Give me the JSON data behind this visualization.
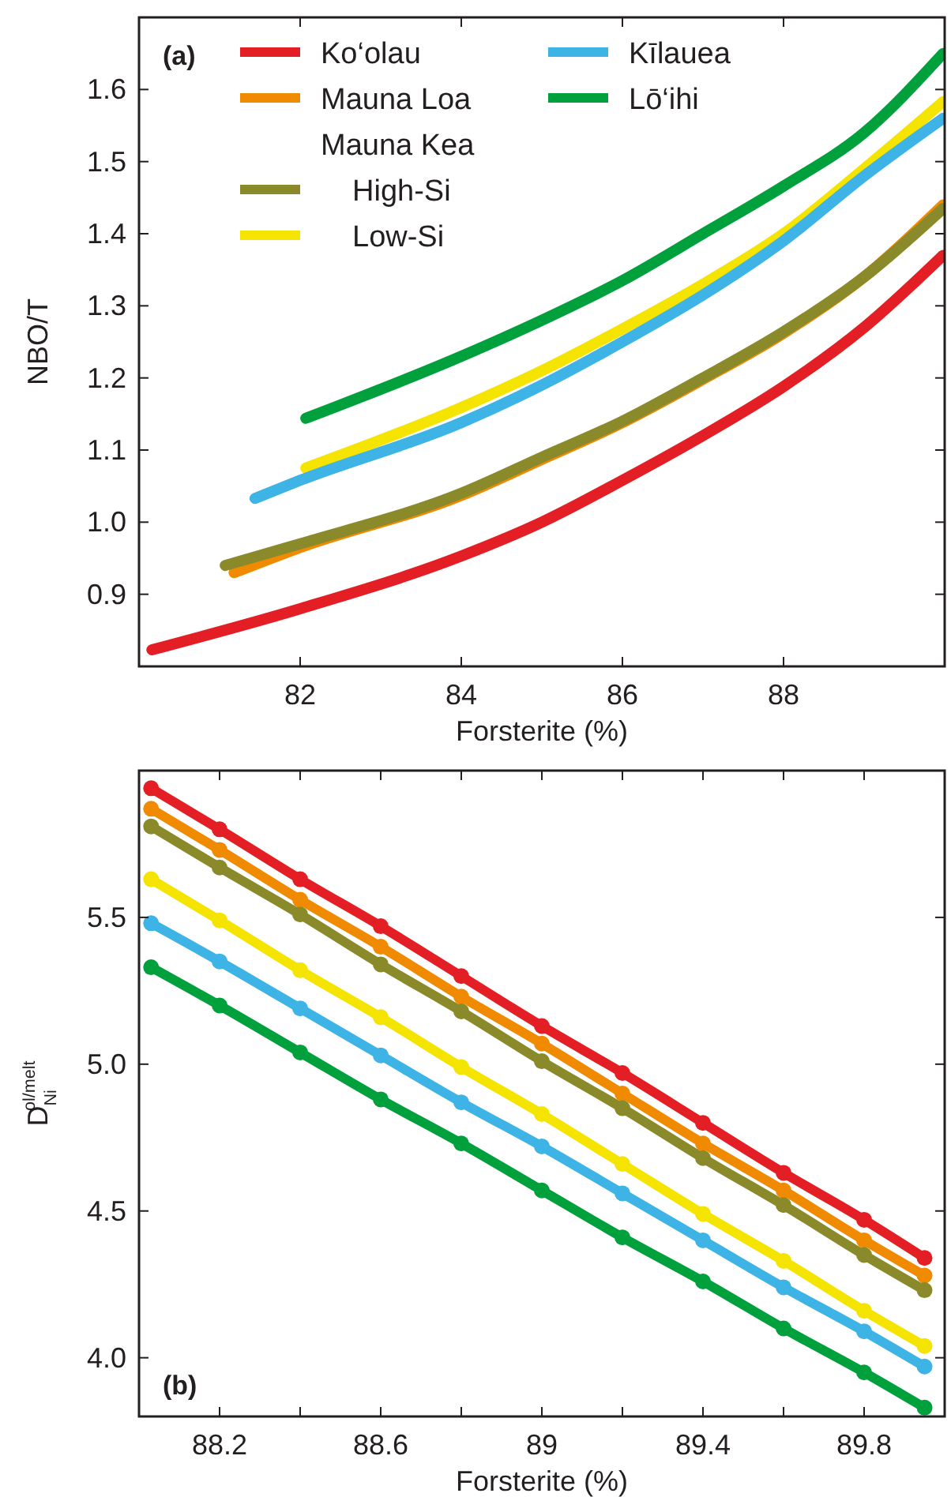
{
  "chart_data": [
    {
      "type": "line",
      "xlabel": "Forsterite (%)",
      "ylabel": "NBO/T",
      "annotations": [
        "(a)",
        "Mauna Kea"
      ],
      "legend": "top left",
      "marker": "none",
      "line_style": "solid",
      "xlim": [
        80,
        90
      ],
      "xticks": [
        82,
        84,
        86,
        88
      ],
      "ylim": [
        0.8,
        1.7
      ],
      "yticks": [
        0.9,
        {
          "value": 1,
          "label": "1.0"
        },
        1.1,
        1.2,
        1.3,
        1.4,
        1.5,
        1.6
      ],
      "series": [
        {
          "name": "Ko‘olau",
          "color": "#e31e24",
          "x": [
            80.16,
            82,
            84,
            85,
            86,
            87,
            88,
            89,
            89.98
          ],
          "values": [
            0.823,
            0.88,
            0.953,
            1.0,
            1.058,
            1.12,
            1.188,
            1.27,
            1.37
          ]
        },
        {
          "name": "Mauna Loa",
          "color": "#f08a00",
          "x": [
            81.18,
            82,
            84,
            85,
            86,
            87,
            88,
            89,
            89.98
          ],
          "values": [
            0.93,
            0.965,
            1.037,
            1.087,
            1.138,
            1.198,
            1.262,
            1.34,
            1.44
          ]
        },
        {
          "name": "High-Si",
          "color": "#8a8a2a",
          "x": [
            81.07,
            82,
            84,
            85,
            86,
            87,
            88,
            89,
            89.98
          ],
          "values": [
            0.94,
            0.97,
            1.04,
            1.09,
            1.14,
            1.2,
            1.264,
            1.34,
            1.435
          ]
        },
        {
          "name": "Low-Si",
          "color": "#f5e400",
          "x": [
            82.07,
            84,
            85,
            86,
            87,
            88,
            89,
            89.98
          ],
          "values": [
            1.075,
            1.159,
            1.21,
            1.268,
            1.33,
            1.4,
            1.49,
            1.583
          ]
        },
        {
          "name": "Kīlauea",
          "color": "#3db3e6",
          "x": [
            81.44,
            82,
            84,
            85,
            86,
            87,
            88,
            89,
            89.98
          ],
          "values": [
            1.033,
            1.058,
            1.138,
            1.19,
            1.25,
            1.315,
            1.39,
            1.48,
            1.56
          ]
        },
        {
          "name": "Lō‘ihi",
          "color": "#00a03c",
          "x": [
            82.07,
            84,
            85,
            86,
            87,
            88,
            89,
            89.98
          ],
          "values": [
            1.144,
            1.23,
            1.28,
            1.335,
            1.4,
            1.466,
            1.54,
            1.65
          ]
        }
      ]
    },
    {
      "type": "line",
      "xlabel": "Forsterite (%)",
      "ylabel": "D$_{Ni}$$^{ol/melt}$",
      "annotations": [
        "(b)"
      ],
      "marker": "circle",
      "line_style": "solid",
      "xlim": [
        88,
        90
      ],
      "xticks": [
        88.2,
        {
          "value": 88.4,
          "label": null
        },
        88.6,
        {
          "value": 88.8,
          "label": null
        },
        89,
        {
          "value": 89.2,
          "label": null
        },
        89.4,
        {
          "value": 89.6,
          "label": null
        },
        89.8
      ],
      "ylim": [
        3.8,
        6.0
      ],
      "yticks": [
        {
          "value": 4,
          "label": "4.0"
        },
        4.5,
        {
          "value": 5,
          "label": "5.0"
        },
        5.5
      ],
      "x": [
        88.03,
        88.2,
        88.4,
        88.6,
        88.8,
        89,
        89.2,
        89.4,
        89.6,
        89.8,
        89.95
      ],
      "series": [
        {
          "color": "#e31e24",
          "values": [
            5.94,
            5.8,
            5.63,
            5.47,
            5.3,
            5.13,
            4.97,
            4.8,
            4.63,
            4.47,
            4.34
          ]
        },
        {
          "color": "#f08a00",
          "values": [
            5.87,
            5.73,
            5.56,
            5.4,
            5.23,
            5.07,
            4.9,
            4.73,
            4.57,
            4.4,
            4.28
          ]
        },
        {
          "color": "#8a8a2a",
          "values": [
            5.81,
            5.67,
            5.51,
            5.34,
            5.18,
            5.01,
            4.85,
            4.68,
            4.52,
            4.35,
            4.23
          ]
        },
        {
          "color": "#f5e400",
          "values": [
            5.63,
            5.49,
            5.32,
            5.16,
            4.99,
            4.83,
            4.66,
            4.49,
            4.33,
            4.16,
            4.04
          ]
        },
        {
          "color": "#3db3e6",
          "values": [
            5.48,
            5.35,
            5.19,
            5.03,
            4.87,
            4.72,
            4.56,
            4.4,
            4.24,
            4.09,
            3.97
          ]
        },
        {
          "color": "#00a03c",
          "values": [
            5.33,
            5.2,
            5.04,
            4.88,
            4.73,
            4.57,
            4.41,
            4.26,
            4.1,
            3.95,
            3.83
          ]
        }
      ]
    }
  ]
}
